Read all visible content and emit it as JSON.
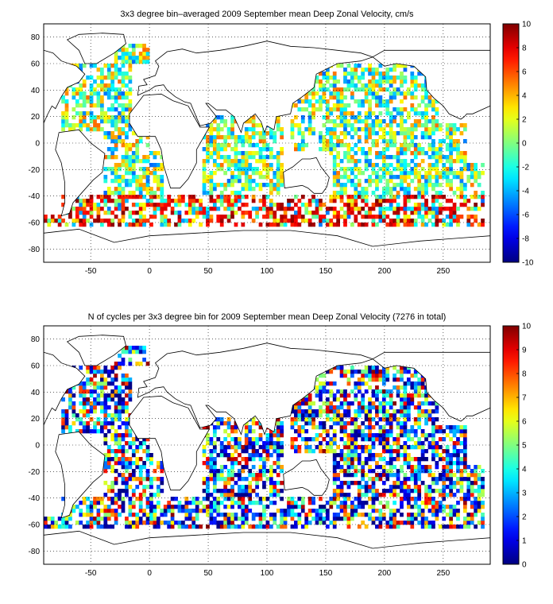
{
  "chart_data": [
    {
      "type": "heatmap",
      "title": "3x3 degree bin–averaged 2009 September mean Deep Zonal Velocity, cm/s",
      "xlim": [
        -90,
        290
      ],
      "ylim": [
        -90,
        90
      ],
      "xticks": [
        -50,
        0,
        50,
        100,
        150,
        200,
        250
      ],
      "yticks": [
        80,
        60,
        40,
        20,
        0,
        -20,
        -40,
        -60,
        -80
      ],
      "grid": true,
      "bin_size_deg": 3,
      "colorbar": {
        "range": [
          -10,
          10
        ],
        "ticks": [
          10,
          8,
          6,
          4,
          2,
          0,
          -2,
          -4,
          -6,
          -8,
          -10
        ],
        "colormap": "jet"
      }
    },
    {
      "type": "heatmap",
      "title": "N of cycles per 3x3 degree bin for 2009 September mean Deep Zonal Velocity (7276 in total)",
      "xlim": [
        -90,
        290
      ],
      "ylim": [
        -90,
        90
      ],
      "xticks": [
        -50,
        0,
        50,
        100,
        150,
        200,
        250
      ],
      "yticks": [
        80,
        60,
        40,
        20,
        0,
        -20,
        -40,
        -60,
        -80
      ],
      "grid": true,
      "bin_size_deg": 3,
      "colorbar": {
        "range": [
          0,
          10
        ],
        "ticks": [
          10,
          9,
          8,
          7,
          6,
          5,
          4,
          3,
          2,
          1,
          0
        ],
        "colormap": "jet"
      }
    }
  ]
}
